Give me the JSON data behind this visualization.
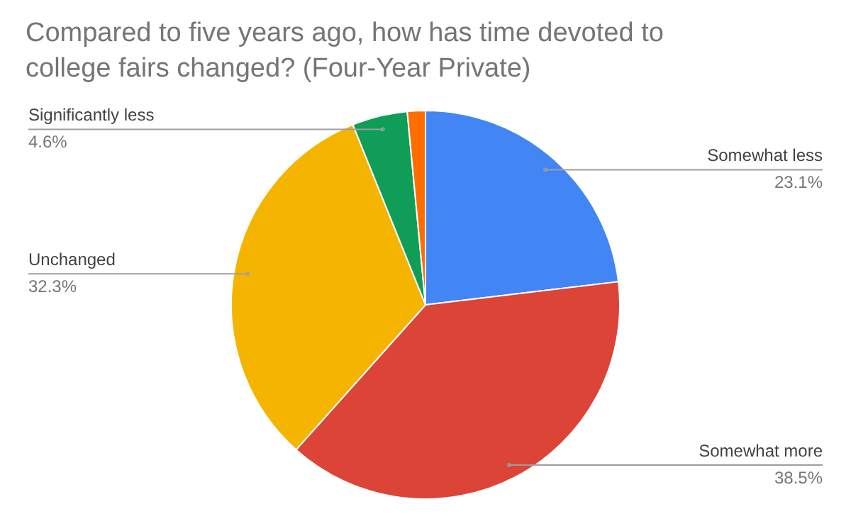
{
  "chart_data": {
    "type": "pie",
    "title": "Compared to five years ago, how has time devoted to college fairs changed? (Four-Year Private)",
    "categories": [
      "Somewhat less",
      "Somewhat more",
      "Unchanged",
      "Significantly less",
      null
    ],
    "values": [
      23.1,
      38.5,
      32.3,
      4.6,
      1.5
    ],
    "value_labels": [
      "23.1%",
      "38.5%",
      "32.3%",
      "4.6%",
      null
    ],
    "colors": [
      "#4285f4",
      "#db4437",
      "#f4b400",
      "#0f9d58",
      "#ff6d01"
    ]
  }
}
